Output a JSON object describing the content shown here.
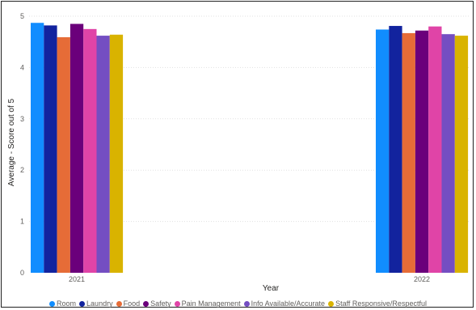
{
  "chart_data": {
    "type": "bar",
    "categories": [
      "2021",
      "2022"
    ],
    "xlabel": "Year",
    "ylabel": "Average - Score out of 5",
    "ylim": [
      0,
      5
    ],
    "yticks": [
      0,
      1,
      2,
      3,
      4,
      5
    ],
    "grid": true,
    "legend_position": "bottom",
    "series": [
      {
        "name": "Room",
        "color": "#118dff",
        "values": [
          4.87,
          4.74
        ]
      },
      {
        "name": "Laundry",
        "color": "#12239e",
        "values": [
          4.82,
          4.81
        ]
      },
      {
        "name": "Food",
        "color": "#e66c37",
        "values": [
          4.59,
          4.67
        ]
      },
      {
        "name": "Safety",
        "color": "#6b007b",
        "values": [
          4.85,
          4.72
        ]
      },
      {
        "name": "Pain Management",
        "color": "#e044a7",
        "values": [
          4.75,
          4.8
        ]
      },
      {
        "name": "Info Available/Accurate",
        "color": "#744ec2",
        "values": [
          4.62,
          4.65
        ]
      },
      {
        "name": "Staff Responsive/Respectful",
        "color": "#d9b300",
        "values": [
          4.64,
          4.62
        ]
      }
    ]
  }
}
